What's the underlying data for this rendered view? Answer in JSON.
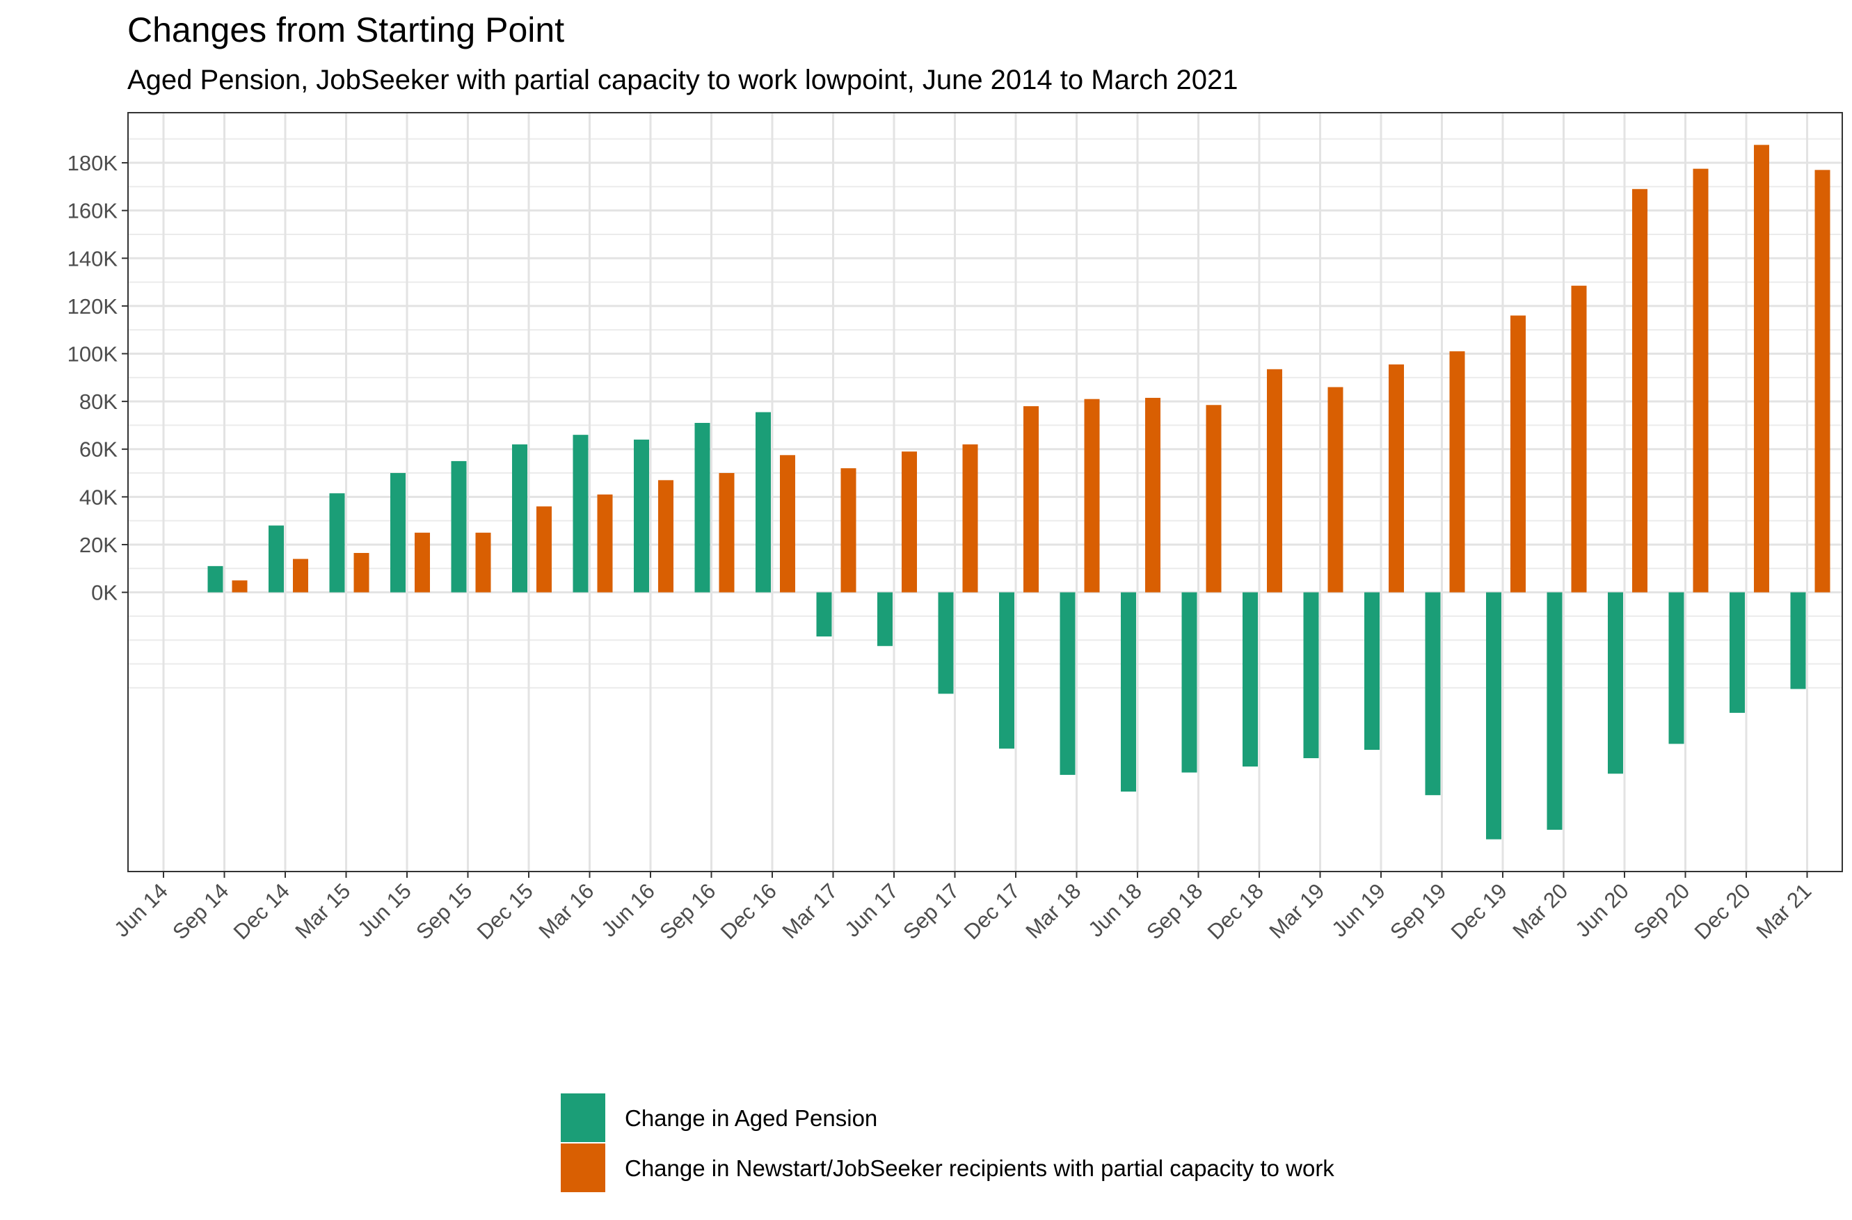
{
  "chart_data": {
    "type": "bar",
    "title": "Changes from Starting Point",
    "subtitle": "Aged Pension, JobSeeker with partial capacity to work lowpoint, June 2014 to March 2021",
    "xlabel": "",
    "ylabel": "",
    "ylim": [
      -117000,
      201000
    ],
    "y_ticks": [
      {
        "value": 0,
        "label": "0K"
      },
      {
        "value": 20000,
        "label": "20K"
      },
      {
        "value": 40000,
        "label": "40K"
      },
      {
        "value": 60000,
        "label": "60K"
      },
      {
        "value": 80000,
        "label": "80K"
      },
      {
        "value": 100000,
        "label": "100K"
      },
      {
        "value": 120000,
        "label": "120K"
      },
      {
        "value": 140000,
        "label": "140K"
      },
      {
        "value": 160000,
        "label": "160K"
      },
      {
        "value": 180000,
        "label": "180K"
      }
    ],
    "categories": [
      "Jun 14",
      "Sep 14",
      "Dec 14",
      "Mar 15",
      "Jun 15",
      "Sep 15",
      "Dec 15",
      "Mar 16",
      "Jun 16",
      "Sep 16",
      "Dec 16",
      "Mar 17",
      "Jun 17",
      "Sep 17",
      "Dec 17",
      "Mar 18",
      "Jun 18",
      "Sep 18",
      "Dec 18",
      "Mar 19",
      "Jun 19",
      "Sep 19",
      "Dec 19",
      "Mar 20",
      "Jun 20",
      "Sep 20",
      "Dec 20",
      "Mar 21"
    ],
    "grid": true,
    "legend_position": "bottom",
    "series": [
      {
        "name": "Change in Aged Pension",
        "color": "#1b9e77",
        "values": [
          0,
          11000,
          28000,
          41500,
          50000,
          55000,
          62000,
          66000,
          64000,
          71000,
          75500,
          -18500,
          -22500,
          -42500,
          -65500,
          -76500,
          -83500,
          -75500,
          -73000,
          -69500,
          -66000,
          -85000,
          -103500,
          -99500,
          -76000,
          -63500,
          -50500,
          -40500
        ]
      },
      {
        "name": "Change in Newstart/JobSeeker recipients with partial capacity to work",
        "color": "#d95f02",
        "values": [
          0,
          5000,
          14000,
          16500,
          25000,
          25000,
          36000,
          41000,
          47000,
          50000,
          57500,
          52000,
          59000,
          62000,
          78000,
          81000,
          81500,
          78500,
          93500,
          86000,
          95500,
          101000,
          116000,
          128500,
          169000,
          177500,
          187500,
          177000
        ]
      }
    ]
  }
}
